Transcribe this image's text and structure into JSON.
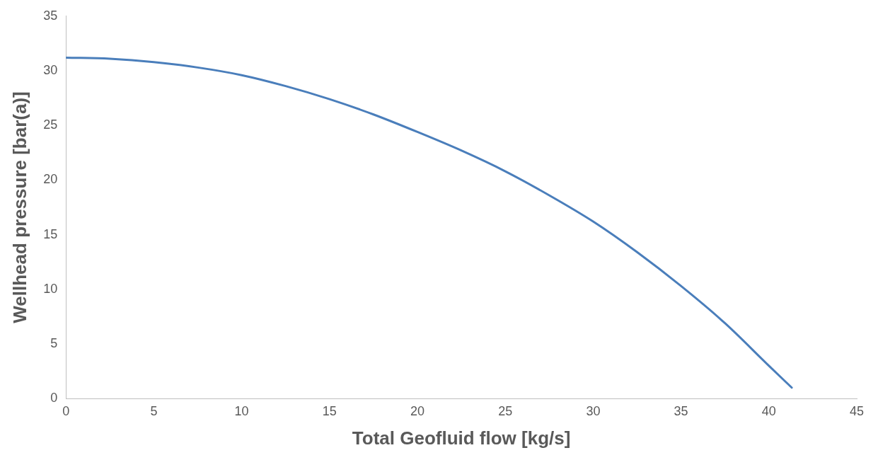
{
  "chart_data": {
    "type": "line",
    "xlabel": "Total Geofluid flow [kg/s]",
    "ylabel": "Wellhead pressure [bar(a)]",
    "x": [
      0,
      2.5,
      5,
      7.5,
      10,
      12.5,
      15,
      17.5,
      20,
      22.5,
      25,
      27.5,
      30,
      32.5,
      35,
      37.5,
      40,
      41.3
    ],
    "series": [
      {
        "color": "#4a7ebb",
        "values": [
          31.2,
          31.1,
          30.8,
          30.3,
          29.6,
          28.6,
          27.4,
          26.0,
          24.4,
          22.7,
          20.8,
          18.6,
          16.2,
          13.4,
          10.3,
          6.9,
          3.0,
          1.0
        ]
      }
    ],
    "xlim": [
      0,
      45
    ],
    "xticks": [
      0,
      5,
      10,
      15,
      20,
      25,
      30,
      35,
      40,
      45
    ],
    "ylim": [
      0,
      35
    ],
    "yticks": [
      0,
      5,
      10,
      15,
      20,
      25,
      30,
      35
    ],
    "grid": false,
    "legend": false,
    "marker": "none",
    "line_style": "solid"
  }
}
